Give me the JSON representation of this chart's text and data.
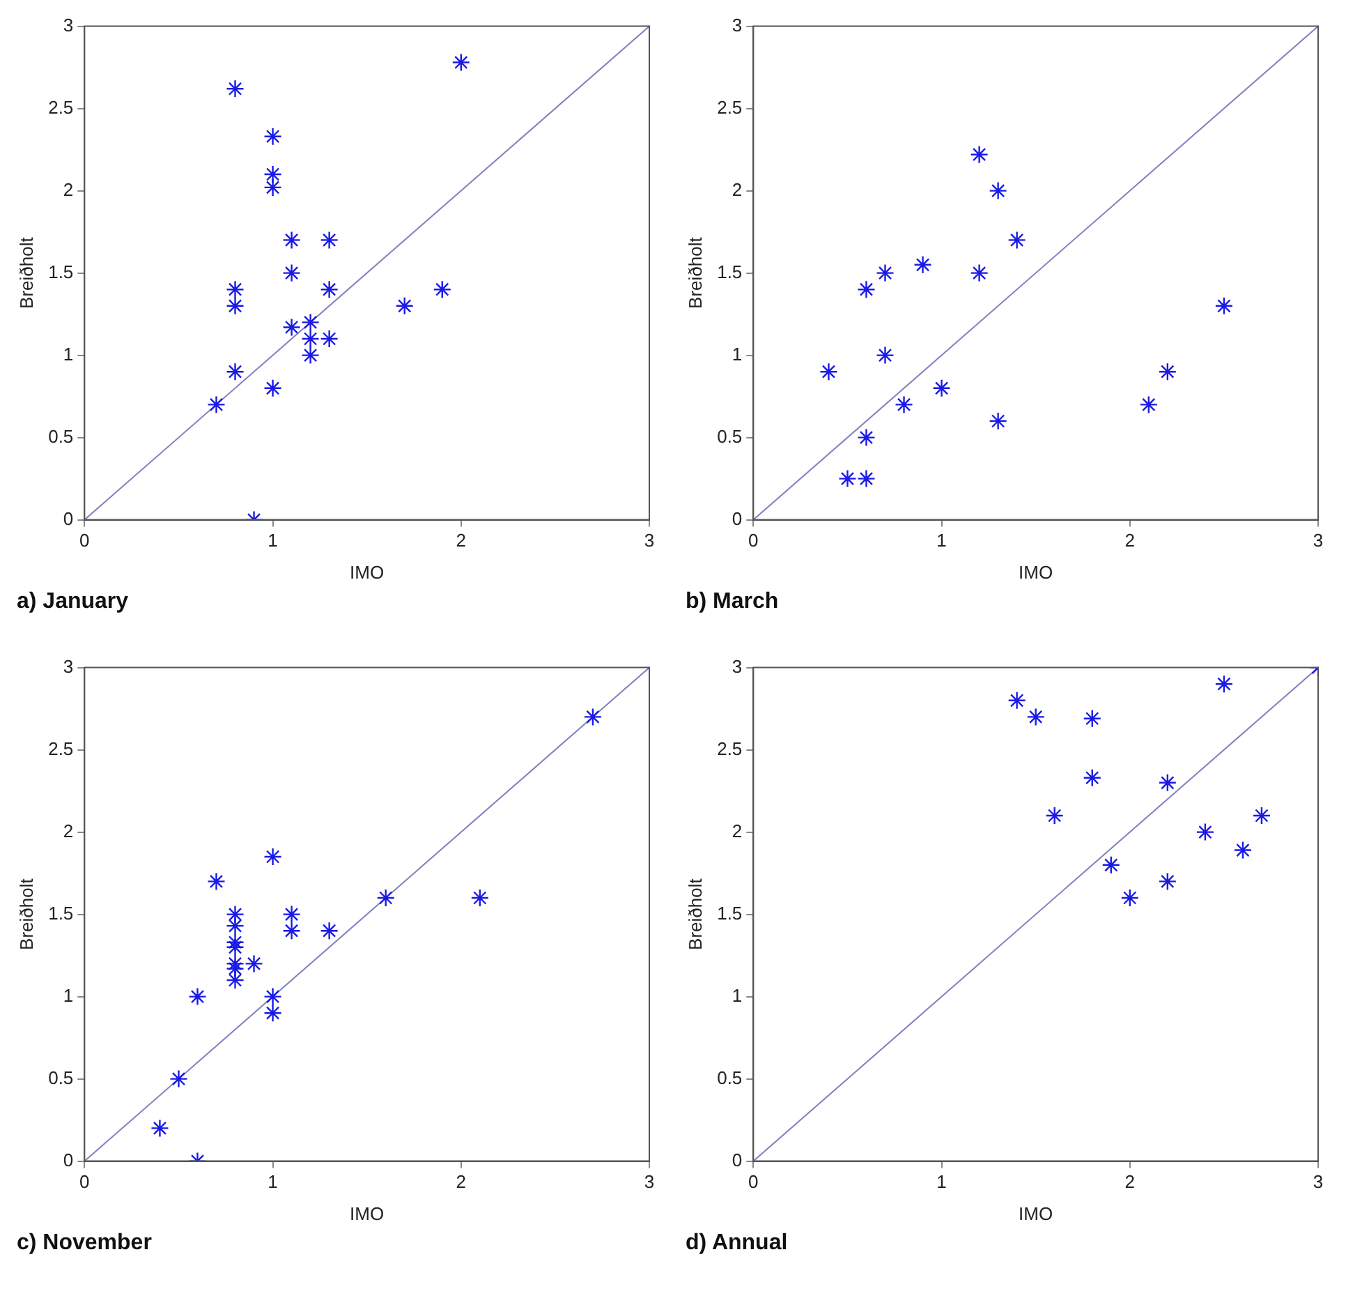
{
  "chart_data": [
    {
      "type": "scatter",
      "title": "a) January",
      "xlabel": "IMO",
      "ylabel": "Breiðholt",
      "xlim": [
        0,
        3
      ],
      "ylim": [
        0,
        3
      ],
      "xticks": [
        0,
        1,
        2,
        3
      ],
      "yticks": [
        0,
        0.5,
        1,
        1.5,
        2,
        2.5,
        3
      ],
      "grid": false,
      "series": [
        {
          "type": "scatter",
          "marker": "cross",
          "color": "#1a1ae6",
          "x": [
            0.8,
            1,
            1,
            1,
            1.1,
            1.3,
            1.1,
            0.8,
            1.3,
            0.8,
            1.7,
            1.9,
            1.2,
            1.1,
            1.2,
            1.3,
            1.2,
            0.8,
            1.0,
            0.7,
            0.9,
            2.0
          ],
          "values": [
            2.62,
            2.33,
            2.1,
            2.02,
            1.7,
            1.7,
            1.5,
            1.4,
            1.4,
            1.3,
            1.3,
            1.4,
            1.2,
            1.17,
            1.1,
            1.1,
            1.0,
            0.9,
            0.8,
            0.7,
            0,
            2.78
          ]
        },
        {
          "type": "line",
          "color": "#8080c0",
          "x": [
            0,
            3
          ],
          "values": [
            0,
            3
          ]
        }
      ]
    },
    {
      "type": "scatter",
      "title": "b) March",
      "xlabel": "IMO",
      "ylabel": "Breiðholt",
      "xlim": [
        0,
        3
      ],
      "ylim": [
        0,
        3
      ],
      "xticks": [
        0,
        1,
        2,
        3
      ],
      "yticks": [
        0,
        0.5,
        1,
        1.5,
        2,
        2.5,
        3
      ],
      "grid": false,
      "series": [
        {
          "type": "scatter",
          "marker": "cross",
          "color": "#1a1ae6",
          "x": [
            0.4,
            0.5,
            0.6,
            0.6,
            0.6,
            0.7,
            0.7,
            0.8,
            0.9,
            1.0,
            1.2,
            1.2,
            1.3,
            1.3,
            1.4,
            2.1,
            2.2,
            2.5
          ],
          "values": [
            0.9,
            0.25,
            0.25,
            0.5,
            1.4,
            1.5,
            1.0,
            0.7,
            1.55,
            0.8,
            2.22,
            1.5,
            2.0,
            0.6,
            1.7,
            0.7,
            0.9,
            1.3
          ]
        },
        {
          "type": "line",
          "color": "#8080c0",
          "x": [
            0,
            3
          ],
          "values": [
            0,
            3
          ]
        }
      ]
    },
    {
      "type": "scatter",
      "title": "c) November",
      "xlabel": "IMO",
      "ylabel": "Breiðholt",
      "xlim": [
        0,
        3
      ],
      "ylim": [
        0,
        3
      ],
      "xticks": [
        0,
        1,
        2,
        3
      ],
      "yticks": [
        0,
        0.5,
        1,
        1.5,
        2,
        2.5,
        3
      ],
      "grid": false,
      "series": [
        {
          "type": "scatter",
          "marker": "cross",
          "color": "#1a1ae6",
          "x": [
            0.4,
            0.5,
            0.6,
            0.6,
            0.7,
            0.8,
            0.8,
            0.8,
            0.8,
            0.8,
            0.8,
            0.8,
            0.9,
            1.0,
            1.0,
            1.0,
            1.1,
            1.1,
            1.3,
            1.6,
            2.1,
            2.7
          ],
          "values": [
            0.2,
            0.5,
            0,
            1.0,
            1.7,
            1.5,
            1.43,
            1.33,
            1.3,
            1.2,
            1.17,
            1.1,
            1.2,
            1.85,
            1.0,
            0.9,
            1.5,
            1.4,
            1.4,
            1.6,
            1.6,
            2.7
          ]
        },
        {
          "type": "line",
          "color": "#8080c0",
          "x": [
            0,
            3
          ],
          "values": [
            0,
            3
          ]
        }
      ]
    },
    {
      "type": "scatter",
      "title": "d) Annual",
      "xlabel": "IMO",
      "ylabel": "Breiðholt",
      "xlim": [
        0,
        3
      ],
      "ylim": [
        0,
        3
      ],
      "xticks": [
        0,
        1,
        2,
        3
      ],
      "yticks": [
        0,
        0.5,
        1,
        1.5,
        2,
        2.5,
        3
      ],
      "grid": false,
      "series": [
        {
          "type": "scatter",
          "marker": "cross",
          "color": "#1a1ae6",
          "x": [
            1.4,
            1.5,
            1.6,
            1.8,
            1.8,
            1.9,
            2.0,
            2.2,
            2.2,
            2.4,
            2.5,
            2.6,
            2.7,
            3
          ],
          "values": [
            2.8,
            2.7,
            2.1,
            2.69,
            2.33,
            1.8,
            1.6,
            2.3,
            1.7,
            2.0,
            2.9,
            1.89,
            2.1,
            3
          ]
        },
        {
          "type": "line",
          "color": "#8080c0",
          "x": [
            0,
            3
          ],
          "values": [
            0,
            3
          ]
        }
      ]
    }
  ]
}
